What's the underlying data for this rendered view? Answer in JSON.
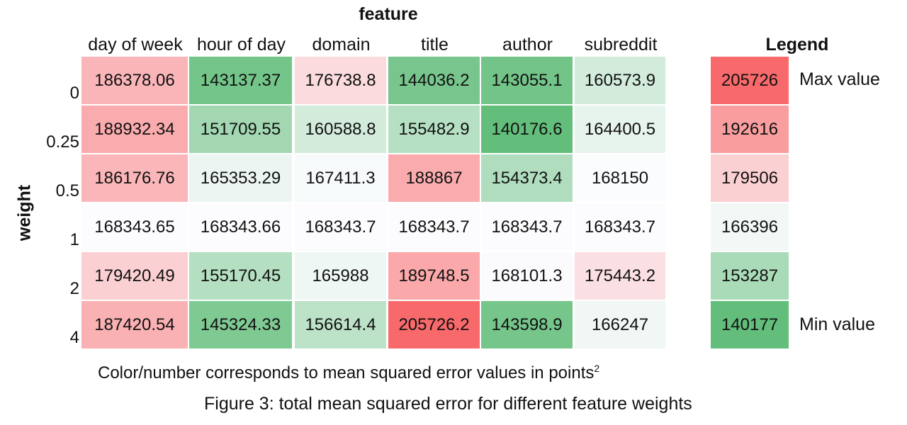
{
  "chart_data": {
    "type": "heatmap",
    "title": "feature",
    "xlabel": "feature",
    "ylabel": "weight",
    "columns": [
      "day of week",
      "hour of day",
      "domain",
      "title",
      "author",
      "subreddit"
    ],
    "rows": [
      "0",
      "0.25",
      "0.5",
      "1",
      "2",
      "4"
    ],
    "values": [
      [
        "186378.06",
        "143137.37",
        "176738.8",
        "144036.2",
        "143055.1",
        "160573.9"
      ],
      [
        "188932.34",
        "151709.55",
        "160588.8",
        "155482.9",
        "140176.6",
        "164400.5"
      ],
      [
        "186176.76",
        "165353.29",
        "167411.3",
        "188867",
        "154373.4",
        "168150"
      ],
      [
        "168343.65",
        "168343.66",
        "168343.7",
        "168343.7",
        "168343.7",
        "168343.7"
      ],
      [
        "179420.49",
        "155170.45",
        "165988",
        "189748.5",
        "168101.3",
        "175443.2"
      ],
      [
        "187420.54",
        "145324.33",
        "156614.4",
        "205726.2",
        "143598.9",
        "166247"
      ]
    ],
    "legend": {
      "title": "Legend",
      "values": [
        "205726",
        "192616",
        "179506",
        "166396",
        "153287",
        "140177"
      ],
      "max_label": "Max value",
      "min_label": "Min value"
    },
    "colors": {
      "high": "#f8696b",
      "mid": "#fcfcff",
      "low": "#63be7b"
    },
    "note_prefix": "Color/number corresponds to mean squared error values in points",
    "note_superscript": "2",
    "caption": "Figure 3: total mean squared error for different feature weights"
  }
}
